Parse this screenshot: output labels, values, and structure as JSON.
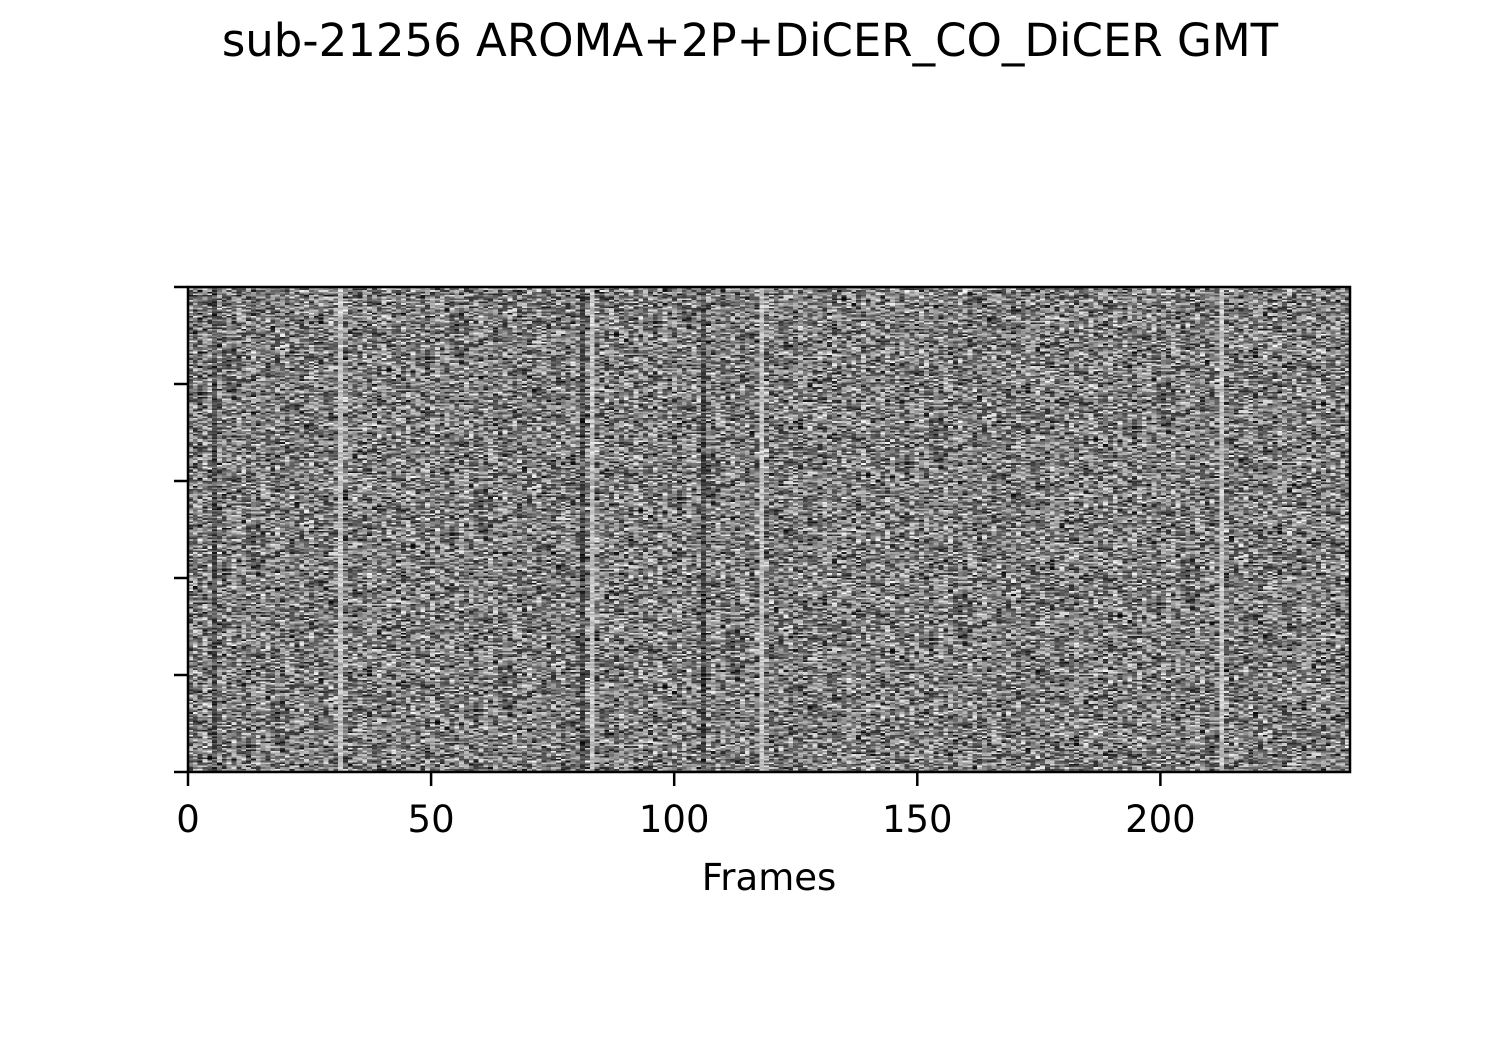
{
  "chart_data": {
    "type": "heatmap",
    "title": "sub-21256 AROMA+2P+DiCER_CO_DiCER GMT",
    "xlabel": "Frames",
    "ylabel": "",
    "xlim": [
      0,
      239
    ],
    "x_ticks": [
      0,
      50,
      100,
      150,
      200
    ],
    "y_tick_count": 6,
    "colormap": "gray",
    "colors": {
      "low": "#000000",
      "high": "#ffffff",
      "axis": "#000000"
    },
    "grid": false,
    "legend": "none",
    "notes_visible_structure": {
      "bright_vertical_bands_at_frames": [
        31,
        83,
        118,
        213
      ],
      "darker_vertical_bands_at_frames": [
        5,
        81,
        106
      ]
    }
  }
}
